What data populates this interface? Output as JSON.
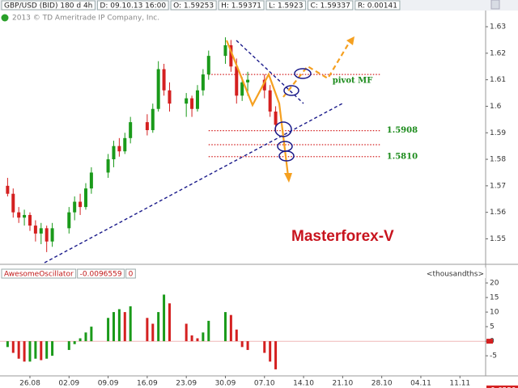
{
  "header": {
    "items": [
      "GBP/USD (BID) 180 d 4h",
      "D: 09.10.13 16:00",
      "O: 1.59253",
      "H: 1.59371",
      "L: 1.5923",
      "C: 1.59337",
      "R: 0.00141"
    ],
    "copyright": "2013 © TD Ameritrade IP Company, Inc."
  },
  "chart_data": [
    {
      "type": "candlestick",
      "x": [
        -4,
        -3,
        -2,
        -1,
        0,
        1,
        2,
        3,
        4,
        7,
        8,
        9,
        10,
        11,
        14,
        15,
        16,
        17,
        18,
        21,
        22,
        23,
        24,
        25,
        28,
        29,
        30,
        31,
        32,
        35,
        36,
        37,
        38,
        39,
        42,
        43,
        44
      ],
      "open": [
        1.57,
        1.567,
        1.56,
        1.558,
        1.559,
        1.555,
        1.552,
        1.554,
        1.549,
        1.554,
        1.56,
        1.564,
        1.562,
        1.569,
        1.575,
        1.58,
        1.585,
        1.583,
        1.588,
        1.594,
        1.591,
        1.599,
        1.614,
        1.606,
        1.601,
        1.603,
        1.599,
        1.606,
        1.612,
        1.619,
        1.623,
        1.615,
        1.604,
        1.609,
        1.61,
        1.606,
        1.598
      ],
      "high": [
        1.573,
        1.569,
        1.562,
        1.561,
        1.56,
        1.557,
        1.556,
        1.555,
        1.556,
        1.562,
        1.566,
        1.567,
        1.571,
        1.577,
        1.582,
        1.587,
        1.588,
        1.59,
        1.596,
        1.597,
        1.601,
        1.617,
        1.616,
        1.609,
        1.605,
        1.604,
        1.608,
        1.614,
        1.621,
        1.626,
        1.625,
        1.618,
        1.611,
        1.613,
        1.612,
        1.608,
        1.6
      ],
      "low": [
        1.566,
        1.558,
        1.556,
        1.555,
        1.553,
        1.549,
        1.548,
        1.545,
        1.547,
        1.552,
        1.557,
        1.559,
        1.561,
        1.567,
        1.573,
        1.577,
        1.581,
        1.582,
        1.586,
        1.589,
        1.59,
        1.598,
        1.604,
        1.598,
        1.596,
        1.596,
        1.598,
        1.604,
        1.61,
        1.616,
        1.613,
        1.601,
        1.602,
        1.604,
        1.603,
        1.596,
        1.591
      ],
      "close": [
        1.567,
        1.56,
        1.558,
        1.559,
        1.555,
        1.552,
        1.554,
        1.549,
        1.554,
        1.56,
        1.564,
        1.562,
        1.569,
        1.575,
        1.58,
        1.585,
        1.583,
        1.588,
        1.594,
        1.591,
        1.599,
        1.614,
        1.606,
        1.601,
        1.603,
        1.599,
        1.606,
        1.612,
        1.619,
        1.623,
        1.615,
        1.604,
        1.609,
        1.61,
        1.606,
        1.598,
        1.593
      ],
      "up_color": "#1a9a1a",
      "down_color": "#d42020",
      "xlim": [
        -5.36,
        81.6
      ],
      "xticks": [
        {
          "value": 0,
          "label": "26.08"
        },
        {
          "value": 7,
          "label": "02.09"
        },
        {
          "value": 14,
          "label": "09.09"
        },
        {
          "value": 21,
          "label": "16.09"
        },
        {
          "value": 28,
          "label": "23.09"
        },
        {
          "value": 35,
          "label": "30.09"
        },
        {
          "value": 42,
          "label": "07.10"
        },
        {
          "value": 49,
          "label": "14.10"
        },
        {
          "value": 56,
          "label": "21.10"
        },
        {
          "value": 63,
          "label": "28.10"
        },
        {
          "value": 70,
          "label": "04.11"
        },
        {
          "value": 77,
          "label": "11.11"
        }
      ],
      "ylim": [
        1.541,
        1.6355
      ],
      "yticks": [
        1.55,
        1.56,
        1.57,
        1.58,
        1.59,
        1.6,
        1.61,
        1.62,
        1.63
      ],
      "levels": [
        {
          "value": 1.612,
          "label": "pivot MF",
          "from": 32,
          "to": 62.9
        },
        {
          "value": 1.5908,
          "label": "1.5908",
          "from": 32,
          "to": 62.9
        },
        {
          "value": 1.5855,
          "from": 32,
          "to": 62.9
        },
        {
          "value": 1.581,
          "label": "1.5810",
          "from": 32,
          "to": 62.9
        }
      ],
      "level_color": "#d42020",
      "annotation": "Masterforex-V"
    },
    {
      "type": "histogram-oscillator",
      "title": "AwesomeOscillator",
      "current": "-0.0096559",
      "param": "0",
      "unit_label": "<thousandths>",
      "values": [
        -2,
        -4,
        -6,
        -7,
        -7,
        -6,
        -6.5,
        -6,
        -5,
        -3,
        -1,
        1,
        3,
        5,
        8,
        10,
        11,
        10,
        12,
        8,
        6,
        10,
        16,
        13,
        6,
        2,
        1,
        3,
        7,
        10,
        9,
        4,
        -2,
        -3,
        -4,
        -7,
        -9.6559
      ],
      "last_label": "-9.6559",
      "up_color": "#1a9a1a",
      "down_color": "#d42020",
      "ylim": [
        -11.9,
        21.4
      ],
      "yticks": [
        -5,
        0,
        5,
        10,
        15,
        20
      ]
    }
  ]
}
